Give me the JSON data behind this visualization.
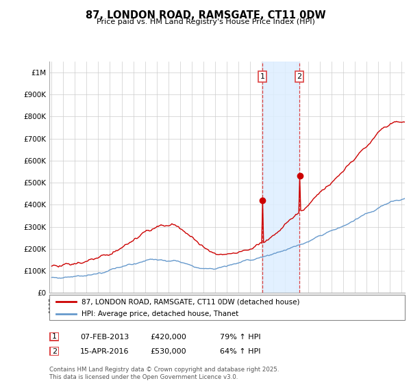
{
  "title": "87, LONDON ROAD, RAMSGATE, CT11 0DW",
  "subtitle": "Price paid vs. HM Land Registry's House Price Index (HPI)",
  "red_label": "87, LONDON ROAD, RAMSGATE, CT11 0DW (detached house)",
  "blue_label": "HPI: Average price, detached house, Thanet",
  "sale1_date": "07-FEB-2013",
  "sale1_price": 420000,
  "sale1_hpi": "79% ↑ HPI",
  "sale2_date": "15-APR-2016",
  "sale2_price": 530000,
  "sale2_hpi": "64% ↑ HPI",
  "footer": "Contains HM Land Registry data © Crown copyright and database right 2025.\nThis data is licensed under the Open Government Licence v3.0.",
  "red_color": "#cc0000",
  "blue_color": "#6699cc",
  "vline_color": "#dd4444",
  "shade_color": "#ddeeff",
  "ylim": [
    0,
    1050000
  ],
  "yticks": [
    0,
    100000,
    200000,
    300000,
    400000,
    500000,
    600000,
    700000,
    800000,
    900000,
    1000000
  ],
  "xstart": 1995,
  "xend": 2026,
  "sale1_year": 2013.083,
  "sale2_year": 2016.25
}
